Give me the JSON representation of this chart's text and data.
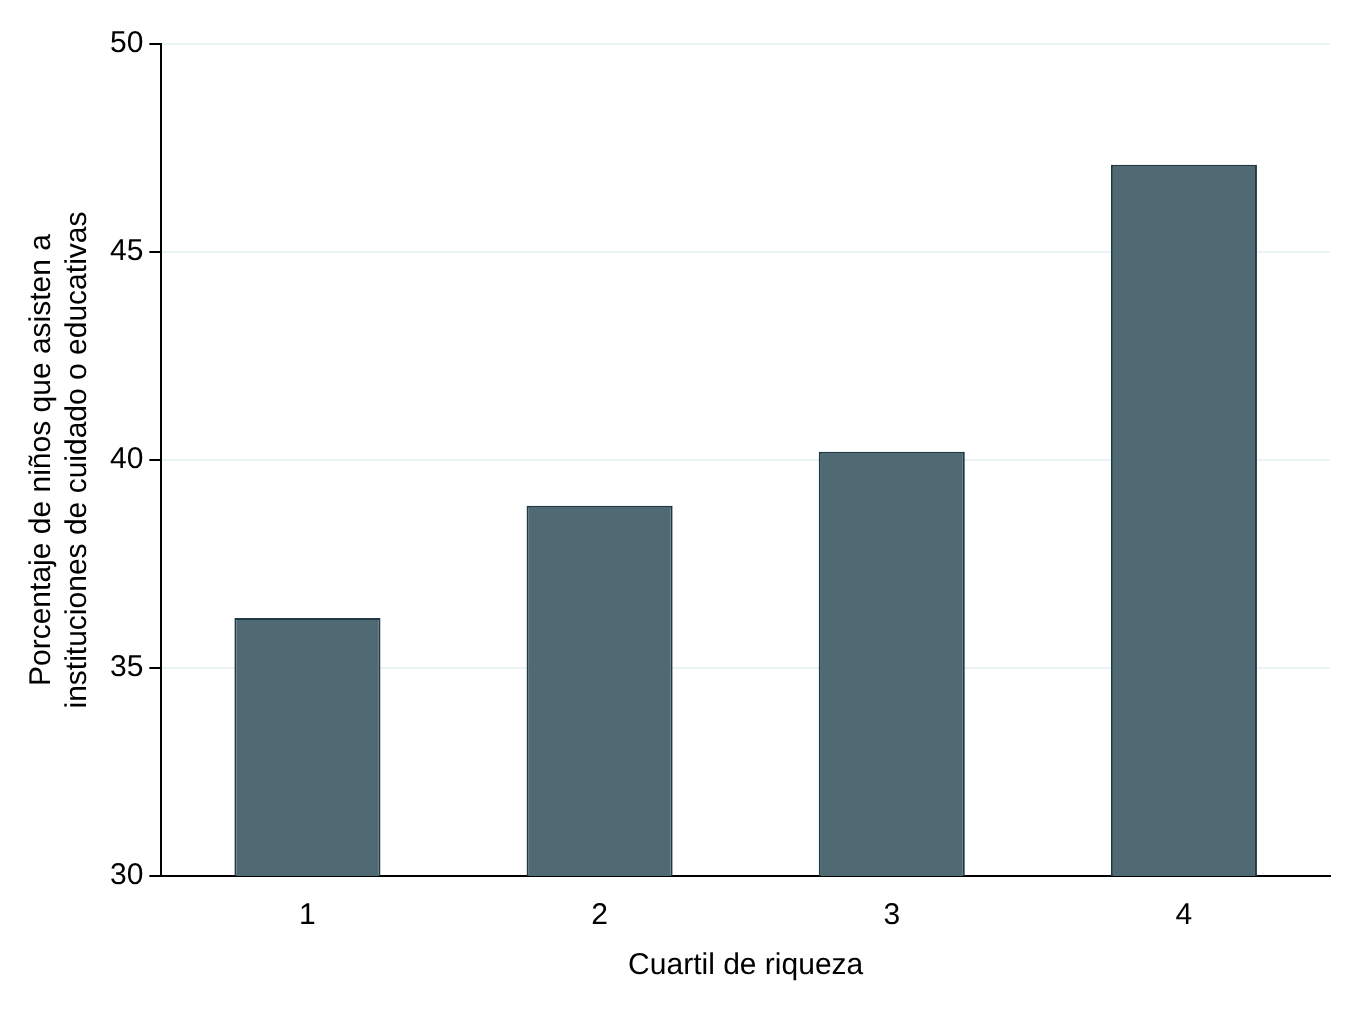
{
  "chart_data": {
    "type": "bar",
    "xlabel": "Cuartil de riqueza",
    "ylabel": "Porcentaje de niños que asisten a\ninstituciones de cuidado o educativas",
    "categories": [
      "1",
      "2",
      "3",
      "4"
    ],
    "values": [
      36.2,
      38.9,
      40.2,
      47.1
    ],
    "color": "#506a73",
    "ylim": [
      30,
      50
    ],
    "yticks": [
      30,
      35,
      40,
      45,
      50
    ],
    "grid": "y",
    "legend": false
  }
}
